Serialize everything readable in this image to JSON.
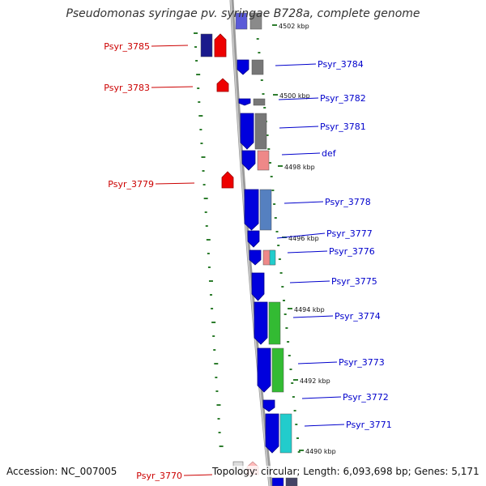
{
  "title": "Pseudomonas syringae pv. syringae B728a, complete genome",
  "footer": {
    "accession": "Accession: NC_007005",
    "topology": "Topology: circular; Length: 6,093,698 bp; Genes: 5,171"
  },
  "colors": {
    "backbone": "#999999",
    "strand_reverse": "#ee0000",
    "strand_forward": "#0000dd",
    "tick": "#2e7d2e",
    "label_red": "#cc0000",
    "label_blue": "#0000cc"
  },
  "scale_labels": [
    "4502 kbp",
    "4500 kbp",
    "4498 kbp",
    "4496 kbp",
    "4494 kbp",
    "4492 kbp",
    "4490 kbp"
  ],
  "genes_left": [
    "Psyr_3785",
    "Psyr_3783",
    "Psyr_3779",
    "Psyr_3770"
  ],
  "genes_right": [
    "Psyr_3784",
    "Psyr_3782",
    "Psyr_3781",
    "def",
    "Psyr_3778",
    "Psyr_3777",
    "Psyr_3776",
    "Psyr_3775",
    "Psyr_3774",
    "Psyr_3773",
    "Psyr_3772",
    "Psyr_3771"
  ]
}
